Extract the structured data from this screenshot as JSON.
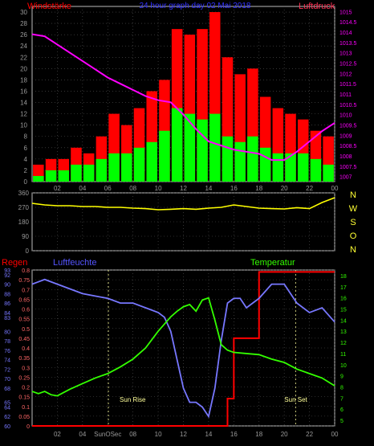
{
  "top": {
    "left_title": "Windstärke",
    "center_title": "24 hour graph day  02 Mai 2018",
    "right_title": "Luftdruck"
  },
  "mid": {
    "compass": [
      "N",
      "W",
      "S",
      "O",
      "N"
    ]
  },
  "bottom": {
    "title_regen": "Regen",
    "title_feuchte": "Luftfeuchte",
    "title_temp": "Temperatur",
    "sunrise_label": "Sun Rise",
    "sunset_label": "Sun Set"
  },
  "colors": {
    "wind_gust": "#ff0000",
    "wind_avg": "#00ff00",
    "pressure": "#ff00ff",
    "direction": "#ffff00",
    "humidity": "#7777ff",
    "temperature": "#33ff00",
    "rain": "#ff0000",
    "grid": "#555555",
    "axis_text": "#999999",
    "pressure_axis": "#ff00ff",
    "rain_axis": "#ff6666",
    "humidity_axis": "#7777ff",
    "temp_axis": "#33ff00",
    "compass": "#ffff33"
  },
  "chart_data": [
    {
      "type": "bar",
      "title": "24 hour graph day  02 Mai 2018",
      "ylabel": "Windstärke",
      "y2label": "Luftdruck",
      "x_ticks": [
        "02",
        "04",
        "06",
        "08",
        "10",
        "12",
        "14",
        "16",
        "18",
        "20",
        "22",
        "00"
      ],
      "x_range_hours": [
        0,
        24
      ],
      "ylim": [
        0,
        31
      ],
      "y_ticks": [
        0,
        2,
        4,
        6,
        8,
        10,
        12,
        14,
        16,
        18,
        20,
        22,
        24,
        26,
        28,
        30
      ],
      "y2lim": [
        1006.75,
        1015.25
      ],
      "y2_ticks": [
        "1015",
        "1014.5",
        "1014",
        "1013.5",
        "1013",
        "1012.5",
        "1012",
        "1011.5",
        "1011",
        "1010.5",
        "1010",
        "1009.5",
        "1009",
        "1008.5",
        "1008",
        "1007.5",
        "1007"
      ],
      "grid": true,
      "series": [
        {
          "name": "Windstärke",
          "unit": "hourly max gust",
          "x": [
            0.5,
            1.5,
            2.5,
            3.5,
            4.5,
            5.5,
            6.5,
            7.5,
            8.5,
            9.5,
            10.5,
            11.5,
            12.5,
            13.5,
            14.5,
            15.5,
            16.5,
            17.5,
            18.5,
            19.5,
            20.5,
            21.5,
            22.5,
            23.5
          ],
          "values": [
            3,
            4,
            4,
            6,
            5,
            8,
            12,
            10,
            13,
            16,
            18,
            27,
            26,
            27,
            30,
            22,
            19,
            20,
            15,
            13,
            12,
            11,
            9,
            8
          ]
        },
        {
          "name": "Windstärke",
          "unit": "hourly mean",
          "x": [
            0.5,
            1.5,
            2.5,
            3.5,
            4.5,
            5.5,
            6.5,
            7.5,
            8.5,
            9.5,
            10.5,
            11.5,
            12.5,
            13.5,
            14.5,
            15.5,
            16.5,
            17.5,
            18.5,
            19.5,
            20.5,
            21.5,
            22.5,
            23.5
          ],
          "values": [
            1,
            2,
            2,
            3,
            3,
            4,
            5,
            5,
            6,
            7,
            9,
            13,
            12,
            11,
            12,
            8,
            7,
            8,
            6,
            5,
            5,
            5,
            4,
            3
          ]
        },
        {
          "name": "Luftdruck",
          "x": [
            0,
            1,
            2,
            3,
            4,
            5,
            6,
            7,
            8,
            9,
            10,
            11,
            12,
            13,
            14,
            15,
            16,
            17,
            18,
            19,
            20,
            21,
            22,
            23,
            24
          ],
          "values": [
            1013.9,
            1013.8,
            1013.4,
            1013.0,
            1012.6,
            1012.2,
            1011.8,
            1011.5,
            1011.2,
            1010.9,
            1010.7,
            1010.6,
            1010.0,
            1009.3,
            1008.7,
            1008.5,
            1008.3,
            1008.2,
            1008.1,
            1007.8,
            1007.8,
            1008.2,
            1008.7,
            1009.2,
            1009.6
          ]
        }
      ]
    },
    {
      "type": "line",
      "ylabel": "",
      "x_ticks": [
        "02",
        "04",
        "06",
        "08",
        "10",
        "12",
        "14",
        "16",
        "18",
        "20",
        "22",
        "00"
      ],
      "x_range_hours": [
        0,
        24
      ],
      "ylim": [
        0,
        360
      ],
      "y_ticks": [
        0,
        90,
        180,
        270,
        360
      ],
      "grid": true,
      "series": [
        {
          "name": "direction",
          "x": [
            0,
            1,
            2,
            3,
            4,
            5,
            6,
            7,
            8,
            9,
            10,
            11,
            12,
            13,
            14,
            15,
            16,
            17,
            18,
            19,
            20,
            21,
            22,
            23,
            24
          ],
          "values": [
            295,
            285,
            280,
            280,
            275,
            275,
            270,
            270,
            265,
            262,
            255,
            258,
            262,
            258,
            265,
            270,
            285,
            275,
            265,
            262,
            260,
            268,
            262,
            300,
            330
          ]
        }
      ]
    },
    {
      "type": "line",
      "x_ticks": [
        "02",
        "04",
        "SunOSec",
        "08",
        "10",
        "12",
        "14",
        "16",
        "18",
        "20",
        "22",
        "00"
      ],
      "x_range_hours": [
        0,
        24
      ],
      "y_rain_lim": [
        0,
        0.8
      ],
      "y_rain_ticks": [
        "0.8",
        "0.75",
        "0.7",
        "0.65",
        "0.6",
        "0.55",
        "0.5",
        "0.45",
        "0.4",
        "0.35",
        "0.3",
        "0.25",
        "0.2",
        "0.15",
        "0.1",
        "0.05",
        "0"
      ],
      "y_humidity_lim": [
        60,
        93
      ],
      "y_humidity_ticks": [
        "93",
        "92",
        "90",
        "88",
        "86",
        "84",
        "83",
        "80",
        "78",
        "76",
        "74",
        "72",
        "70",
        "68",
        "65",
        "64",
        "62",
        "60"
      ],
      "y_temp_lim": [
        4.5,
        18.5
      ],
      "y_temp_ticks": [
        "18",
        "17",
        "16",
        "15",
        "14",
        "13",
        "12",
        "11",
        "10",
        "9",
        "8",
        "7",
        "6",
        "5"
      ],
      "sunrise_hour": 6.05,
      "sunset_hour": 20.9,
      "grid": true,
      "series": [
        {
          "name": "Regen",
          "x": [
            0,
            15.5,
            15.5,
            16.0,
            16.0,
            18.0,
            18.0,
            24.0
          ],
          "values": [
            0,
            0,
            0.14,
            0.14,
            0.45,
            0.45,
            0.79,
            0.79
          ]
        },
        {
          "name": "Luftfeuchte",
          "x": [
            0,
            0.5,
            1,
            2,
            3,
            4,
            5,
            6,
            7,
            8,
            9,
            10,
            10.5,
            11,
            11.5,
            12,
            12.5,
            13,
            13.5,
            14,
            14.5,
            15,
            15.5,
            16,
            16.5,
            17,
            18,
            19,
            20,
            21,
            22,
            23,
            24
          ],
          "values": [
            90,
            90.5,
            91,
            90,
            89,
            88,
            87.5,
            87,
            86,
            86,
            85,
            84,
            83,
            80,
            74,
            68,
            65,
            65,
            64,
            62,
            68,
            78,
            86,
            87,
            87,
            85,
            87,
            90,
            90,
            86,
            84,
            85,
            82
          ]
        },
        {
          "name": "Temperatur",
          "x": [
            0,
            0.5,
            1,
            1.5,
            2,
            3,
            4,
            5,
            6,
            7,
            8,
            9,
            10,
            11,
            11.5,
            12,
            12.5,
            13,
            13.5,
            14,
            14.5,
            15,
            15.5,
            16,
            17,
            18,
            19,
            20,
            21,
            22,
            23,
            24
          ],
          "values": [
            7.6,
            7.4,
            7.6,
            7.3,
            7.2,
            7.8,
            8.3,
            8.8,
            9.2,
            9.8,
            10.5,
            11.5,
            13.0,
            14.3,
            14.8,
            15.2,
            15.4,
            14.8,
            15.8,
            16.0,
            14.0,
            11.8,
            11.3,
            11.1,
            11.0,
            10.9,
            10.5,
            10.2,
            9.6,
            9.2,
            8.8,
            8.1
          ]
        }
      ]
    }
  ]
}
